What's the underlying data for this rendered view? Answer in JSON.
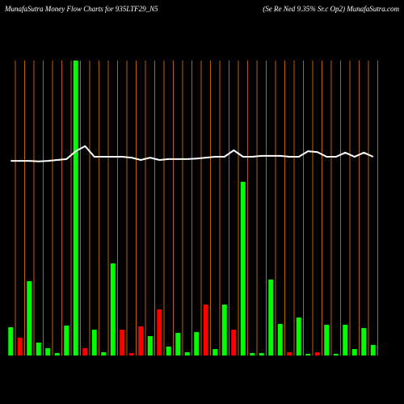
{
  "chart_data": {
    "type": "bar",
    "title": "MunafaSutra  Money Flow  Charts for 935LTF29_N5",
    "subtitle": "(Se    Re    Ned 9.35% Sr.c    Op2) MunafaSutra.com",
    "categories": [
      null,
      null,
      null,
      null,
      null,
      null,
      null,
      null,
      null,
      null,
      null,
      null,
      null,
      null,
      null,
      null,
      null,
      null,
      null,
      null,
      null,
      null,
      null,
      null,
      null,
      null,
      null,
      null,
      null,
      null,
      null,
      null,
      null,
      null,
      null,
      null,
      null,
      null,
      null,
      null
    ],
    "values": [
      35,
      22,
      92,
      16,
      9,
      3,
      37,
      365,
      9,
      32,
      4,
      114,
      32,
      3,
      36,
      24,
      57,
      11,
      28,
      4,
      29,
      63,
      8,
      63,
      32,
      215,
      3,
      3,
      94,
      39,
      4,
      47,
      2,
      4,
      38,
      2,
      38,
      8,
      34,
      13
    ],
    "colors": [
      "#00ff00",
      "#ff0000",
      "#00ff00",
      "#00ff00",
      "#00ff00",
      "#00ff00",
      "#00ff00",
      "#00ff00",
      "#ff0000",
      "#00ff00",
      "#00ff00",
      "#00ff00",
      "#ff0000",
      "#ff0000",
      "#ff0000",
      "#00ff00",
      "#ff0000",
      "#00ff00",
      "#00ff00",
      "#00ff00",
      "#00ff00",
      "#ff0000",
      "#00ff00",
      "#00ff00",
      "#ff0000",
      "#00ff00",
      "#00ff00",
      "#00ff00",
      "#00ff00",
      "#00ff00",
      "#ff0000",
      "#00ff00",
      "#00ff00",
      "#ff0000",
      "#00ff00",
      "#00ff00",
      "#00ff00",
      "#00ff00",
      "#00ff00",
      "#00ff00"
    ],
    "ylim": [
      0,
      365
    ],
    "line": {
      "color": "#ffffff",
      "values": [
        66.0,
        66.0,
        66.0,
        65.8,
        66.0,
        66.3,
        66.6,
        69.3,
        71.0,
        67.4,
        67.4,
        67.4,
        67.4,
        67.1,
        66.3,
        67.1,
        66.3,
        66.6,
        66.6,
        66.6,
        66.8,
        67.1,
        67.4,
        67.4,
        69.6,
        67.4,
        67.4,
        67.7,
        67.7,
        67.7,
        67.4,
        67.4,
        69.3,
        69.0,
        67.4,
        67.4,
        68.8,
        67.4,
        68.8,
        67.4
      ],
      "y2lim": [
        0,
        100
      ]
    }
  }
}
